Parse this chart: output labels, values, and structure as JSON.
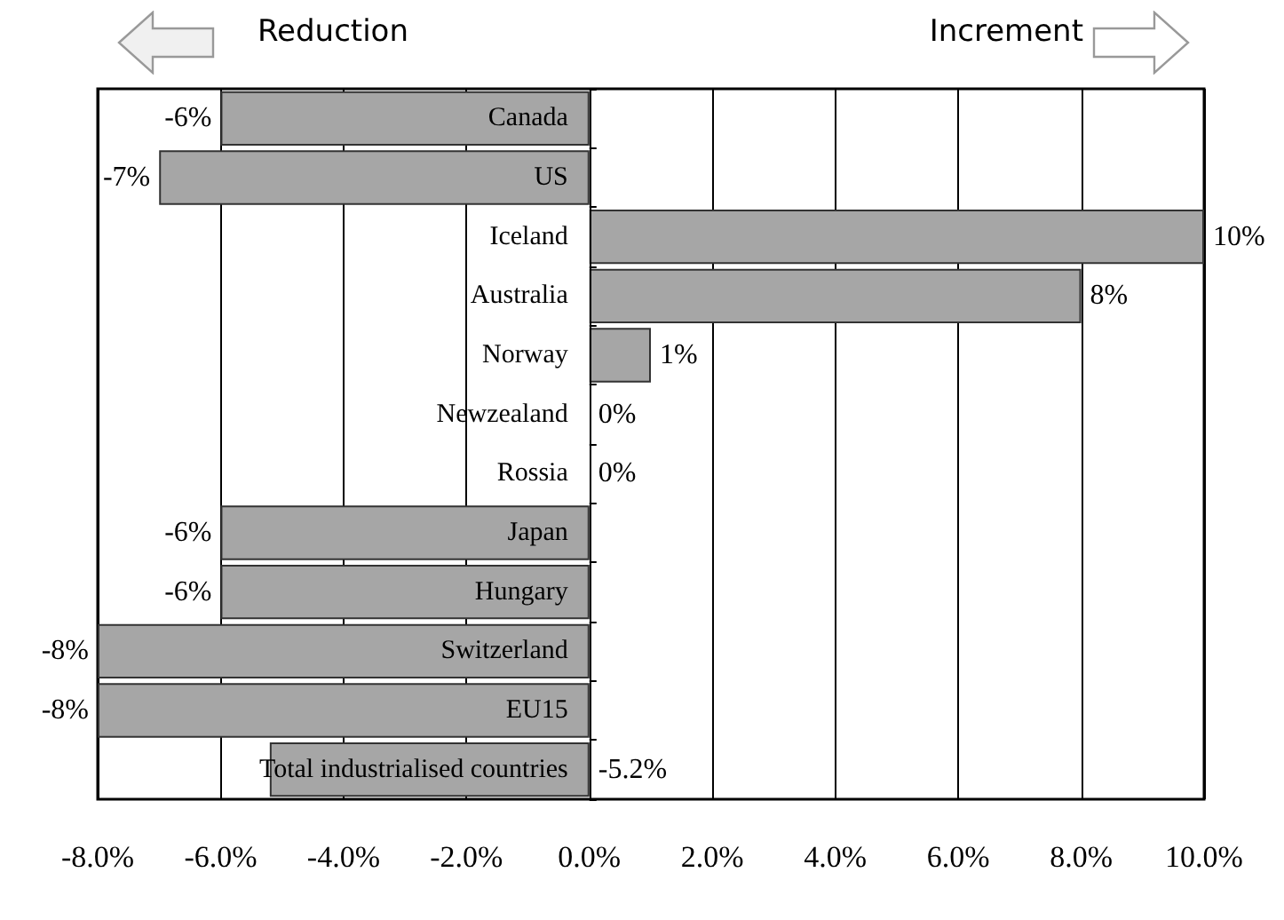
{
  "chart_data": {
    "type": "bar",
    "orientation": "horizontal",
    "categories": [
      "Canada",
      "US",
      "Iceland",
      "Australia",
      "Norway",
      "Newzealand",
      "Rossia",
      "Japan",
      "Hungary",
      "Switzerland",
      "EU15",
      "Total industrialised countries"
    ],
    "values": [
      -6,
      -7,
      10,
      8,
      1,
      0,
      0,
      -6,
      -6,
      -8,
      -8,
      -5.2
    ],
    "value_labels": [
      "-6%",
      "-7%",
      "10%",
      "8%",
      "1%",
      "0%",
      "0%",
      "-6%",
      "-6%",
      "-8%",
      "-8%",
      "-5.2%"
    ],
    "color": "#a6a6a6",
    "xlim": [
      -8,
      10
    ],
    "xticks": [
      {
        "value": -8,
        "label": "-8.0%"
      },
      {
        "value": -6,
        "label": "-6.0%"
      },
      {
        "value": -4,
        "label": "-4.0%"
      },
      {
        "value": -2,
        "label": "-2.0%"
      },
      {
        "value": 0,
        "label": "0.0%"
      },
      {
        "value": 2,
        "label": "2.0%"
      },
      {
        "value": 4,
        "label": "4.0%"
      },
      {
        "value": 6,
        "label": "6.0%"
      },
      {
        "value": 8,
        "label": "8.0%"
      },
      {
        "value": 10,
        "label": "10.0%"
      }
    ],
    "grid": "x",
    "annotations": [
      "Reduction",
      "Increment"
    ]
  }
}
